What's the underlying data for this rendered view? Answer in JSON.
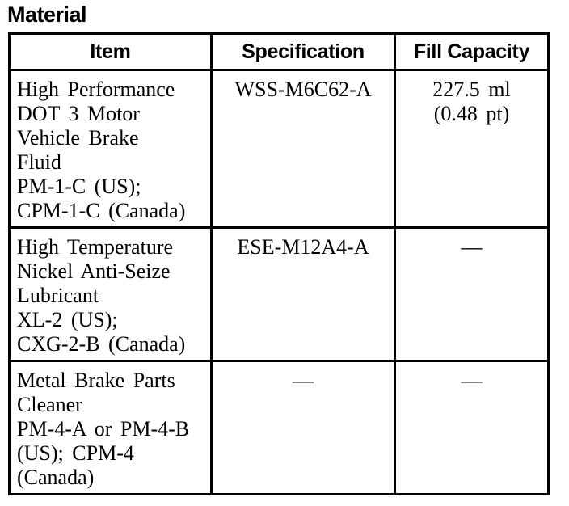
{
  "title": "Material",
  "colors": {
    "text": "#000000",
    "background": "#ffffff",
    "border": "#000000"
  },
  "table": {
    "headers": [
      "Item",
      "Specification",
      "Fill Capacity"
    ],
    "rows": [
      {
        "item": "High Performance\nDOT 3 Motor\nVehicle Brake\nFluid\nPM-1-C (US);\nCPM-1-C (Canada)",
        "specification": "WSS-M6C62-A",
        "fill_capacity": "227.5 ml\n(0.48 pt)"
      },
      {
        "item": "High Temperature\nNickel Anti-Seize\nLubricant\nXL-2 (US);\nCXG-2-B (Canada)",
        "specification": "ESE-M12A4-A",
        "fill_capacity": "—"
      },
      {
        "item": "Metal Brake Parts\nCleaner\nPM-4-A or PM-4-B\n(US); CPM-4\n(Canada)",
        "specification": "—",
        "fill_capacity": "—"
      }
    ]
  }
}
